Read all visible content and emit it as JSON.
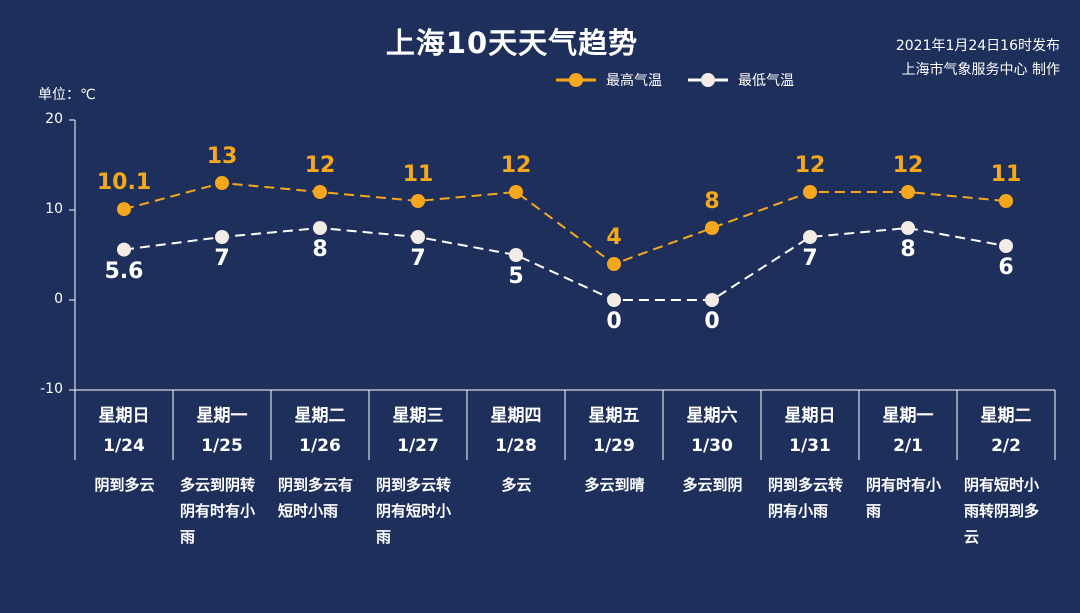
{
  "header": {
    "title": "上海10天天气趋势",
    "publish_line1": "2021年1月24日16时发布",
    "publish_line2": "上海市气象服务中心 制作",
    "unit": "单位：℃"
  },
  "colors": {
    "background": "#1f2f5c",
    "high": "#f5a81c",
    "low": "#ffffff",
    "axis": "#ffffff"
  },
  "days": [
    {
      "weekday": "星期日",
      "date": "1/24",
      "desc": "阴到多云"
    },
    {
      "weekday": "星期一",
      "date": "1/25",
      "desc": "多云到阴转阴有时有小雨"
    },
    {
      "weekday": "星期二",
      "date": "1/26",
      "desc": "阴到多云有短时小雨"
    },
    {
      "weekday": "星期三",
      "date": "1/27",
      "desc": "阴到多云转阴有短时小雨"
    },
    {
      "weekday": "星期四",
      "date": "1/28",
      "desc": "多云"
    },
    {
      "weekday": "星期五",
      "date": "1/29",
      "desc": "多云到晴"
    },
    {
      "weekday": "星期六",
      "date": "1/30",
      "desc": "多云到阴"
    },
    {
      "weekday": "星期日",
      "date": "1/31",
      "desc": "阴到多云转阴有小雨"
    },
    {
      "weekday": "星期一",
      "date": "2/1",
      "desc": "阴有时有小雨"
    },
    {
      "weekday": "星期二",
      "date": "2/2",
      "desc": "阴有短时小雨转阴到多云"
    }
  ],
  "chart_data": {
    "type": "line",
    "title": "上海10天天气趋势",
    "ylabel": "单位：℃",
    "x": [
      "1/24",
      "1/25",
      "1/26",
      "1/27",
      "1/28",
      "1/29",
      "1/30",
      "1/31",
      "2/1",
      "2/2"
    ],
    "ylim": [
      -10,
      20
    ],
    "yticks": [
      "20",
      "10",
      "0",
      "-10"
    ],
    "legend": "top-center",
    "series": [
      {
        "name": "最高气温",
        "values": [
          10.1,
          13,
          12,
          11,
          12,
          4,
          8,
          12,
          12,
          11
        ],
        "labels": [
          "10.1",
          "13",
          "12",
          "11",
          "12",
          "4",
          "8",
          "12",
          "12",
          "11"
        ],
        "color": "#f5a81c"
      },
      {
        "name": "最低气温",
        "values": [
          5.6,
          7,
          8,
          7,
          5,
          0,
          0,
          7,
          8,
          6
        ],
        "labels": [
          "5.6",
          "7",
          "8",
          "7",
          "5",
          "0",
          "0",
          "7",
          "8",
          "6"
        ],
        "color": "#ffffff"
      }
    ]
  }
}
